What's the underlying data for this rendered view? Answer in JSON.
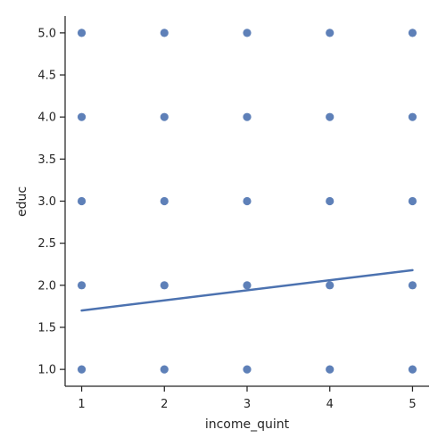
{
  "chart_data": {
    "type": "scatter",
    "xlabel": "income_quint",
    "ylabel": "educ",
    "xlim": [
      0.8,
      5.2
    ],
    "ylim": [
      0.8,
      5.2
    ],
    "x_ticks": [
      1,
      2,
      3,
      4,
      5
    ],
    "x_tick_labels": [
      "1",
      "2",
      "3",
      "4",
      "5"
    ],
    "y_ticks": [
      1.0,
      1.5,
      2.0,
      2.5,
      3.0,
      3.5,
      4.0,
      4.5,
      5.0
    ],
    "y_tick_labels": [
      "1.0",
      "1.5",
      "2.0",
      "2.5",
      "3.0",
      "3.5",
      "4.0",
      "4.5",
      "5.0"
    ],
    "grid": false,
    "series": [
      {
        "type": "scatter",
        "color": "#4c72b0",
        "points": [
          {
            "x": 1,
            "y": 1
          },
          {
            "x": 1,
            "y": 2
          },
          {
            "x": 1,
            "y": 3
          },
          {
            "x": 1,
            "y": 4
          },
          {
            "x": 1,
            "y": 5
          },
          {
            "x": 2,
            "y": 1
          },
          {
            "x": 2,
            "y": 2
          },
          {
            "x": 2,
            "y": 3
          },
          {
            "x": 2,
            "y": 4
          },
          {
            "x": 2,
            "y": 5
          },
          {
            "x": 3,
            "y": 1
          },
          {
            "x": 3,
            "y": 2
          },
          {
            "x": 3,
            "y": 3
          },
          {
            "x": 3,
            "y": 4
          },
          {
            "x": 3,
            "y": 5
          },
          {
            "x": 4,
            "y": 1
          },
          {
            "x": 4,
            "y": 2
          },
          {
            "x": 4,
            "y": 3
          },
          {
            "x": 4,
            "y": 4
          },
          {
            "x": 4,
            "y": 5
          },
          {
            "x": 5,
            "y": 1
          },
          {
            "x": 5,
            "y": 2
          },
          {
            "x": 5,
            "y": 3
          },
          {
            "x": 5,
            "y": 4
          },
          {
            "x": 5,
            "y": 5
          }
        ]
      },
      {
        "type": "line",
        "color": "#4c72b0",
        "points": [
          {
            "x": 1,
            "y": 1.7
          },
          {
            "x": 5,
            "y": 2.18
          }
        ]
      }
    ]
  }
}
